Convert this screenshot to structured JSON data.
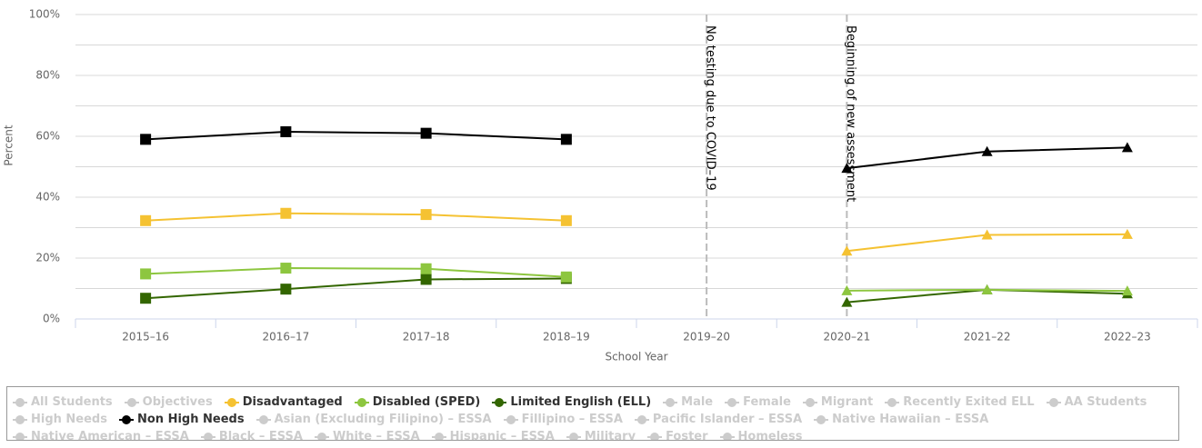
{
  "chart_data": {
    "type": "line",
    "y_axis_label": "Percent",
    "x_axis_label": "School Year",
    "categories": [
      "2015–16",
      "2016–17",
      "2017–18",
      "2018–19",
      "2019–20",
      "2020–21",
      "2021–22",
      "2022–23"
    ],
    "markers": [
      "square",
      "square",
      "square",
      "square",
      null,
      "triangle",
      "triangle",
      "triangle"
    ],
    "ylim": [
      0,
      100
    ],
    "yticks": [
      {
        "value": 0,
        "label": "0%"
      },
      {
        "value": 20,
        "label": "20%"
      },
      {
        "value": 40,
        "label": "40%"
      },
      {
        "value": 60,
        "label": "60%"
      },
      {
        "value": 80,
        "label": "80%"
      },
      {
        "value": 100,
        "label": "100%"
      }
    ],
    "minor_yticks": [
      10,
      30,
      50,
      70,
      90
    ],
    "grid": true,
    "annotations": [
      {
        "at": "2019–20",
        "label": "No testing due to COVID–19"
      },
      {
        "at": "2020–21",
        "label": "Beginning of new assessment"
      }
    ],
    "legend": "bottom",
    "series": [
      {
        "name": "All Students",
        "color": "#cccccc",
        "visible": false
      },
      {
        "name": "Objectives",
        "color": "#cccccc",
        "visible": false
      },
      {
        "name": "Disadvantaged",
        "color": "#f5c232",
        "visible": true,
        "values": [
          32.3,
          34.7,
          34.3,
          32.3,
          null,
          22.3,
          27.6,
          27.8
        ]
      },
      {
        "name": "Disabled (SPED)",
        "color": "#8dc63f",
        "visible": true,
        "values": [
          14.8,
          16.7,
          16.5,
          13.8,
          null,
          9.3,
          9.6,
          9.2
        ]
      },
      {
        "name": "Limited English (ELL)",
        "color": "#336600",
        "visible": true,
        "values": [
          6.8,
          9.8,
          13,
          13.3,
          null,
          5.5,
          9.6,
          8.3
        ]
      },
      {
        "name": "Male",
        "color": "#cccccc",
        "visible": false
      },
      {
        "name": "Female",
        "color": "#cccccc",
        "visible": false
      },
      {
        "name": "Migrant",
        "color": "#cccccc",
        "visible": false
      },
      {
        "name": "Recently Exited ELL",
        "color": "#cccccc",
        "visible": false
      },
      {
        "name": "AA Students",
        "color": "#cccccc",
        "visible": false
      },
      {
        "name": "High Needs",
        "color": "#cccccc",
        "visible": false
      },
      {
        "name": "Non High Needs",
        "color": "#000000",
        "visible": true,
        "values": [
          59,
          61.5,
          61,
          59,
          null,
          49.5,
          55,
          56.3
        ]
      },
      {
        "name": "Asian (Excluding Filipino) – ESSA",
        "color": "#cccccc",
        "visible": false
      },
      {
        "name": "Fillipino – ESSA",
        "color": "#cccccc",
        "visible": false
      },
      {
        "name": "Pacific Islander – ESSA",
        "color": "#cccccc",
        "visible": false
      },
      {
        "name": "Native Hawaiian – ESSA",
        "color": "#cccccc",
        "visible": false
      },
      {
        "name": "Native American – ESSA",
        "color": "#cccccc",
        "visible": false
      },
      {
        "name": "Black – ESSA",
        "color": "#cccccc",
        "visible": false
      },
      {
        "name": "White – ESSA",
        "color": "#cccccc",
        "visible": false
      },
      {
        "name": "Hispanic – ESSA",
        "color": "#cccccc",
        "visible": false
      },
      {
        "name": "Military",
        "color": "#cccccc",
        "visible": false
      },
      {
        "name": "Foster",
        "color": "#cccccc",
        "visible": false
      },
      {
        "name": "Homeless",
        "color": "#cccccc",
        "visible": false
      }
    ]
  }
}
